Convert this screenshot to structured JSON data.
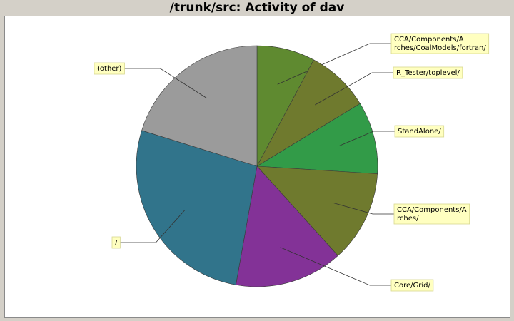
{
  "chart_data": {
    "type": "pie",
    "title": "/trunk/src: Activity of dav",
    "slices": [
      {
        "label": [
          "CCA/Components/A",
          "rches/CoalModels/fortran/"
        ],
        "value": 7.8,
        "color": "#5f8a30"
      },
      {
        "label": [
          "R_Tester/toplevel/"
        ],
        "value": 8.5,
        "color": "#6f7a2e"
      },
      {
        "label": [
          "StandAlone/"
        ],
        "value": 9.7,
        "color": "#329b48"
      },
      {
        "label": [
          "CCA/Components/A",
          "rches/"
        ],
        "value": 12.3,
        "color": "#6f7a2e"
      },
      {
        "label": [
          "Core/Grid/"
        ],
        "value": 14.5,
        "color": "#833297"
      },
      {
        "label": [
          "/"
        ],
        "value": 27.0,
        "color": "#31748b"
      },
      {
        "label": [
          "(other)"
        ],
        "value": 20.2,
        "color": "#9b9b9b"
      }
    ],
    "legend": "callout-labels",
    "colors": {
      "background": "#d4d0c8",
      "plot_background": "#ffffff",
      "label_background": "#ffffc0",
      "label_border": "#d8d890"
    }
  }
}
